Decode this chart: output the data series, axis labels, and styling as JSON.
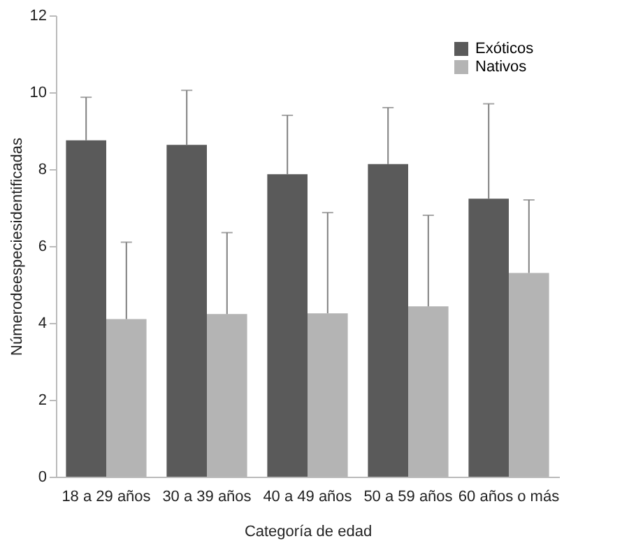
{
  "chart_data": {
    "type": "bar",
    "xlabel": "Categoría de edad",
    "ylabel": "Númerodeespeciesidentificadas",
    "categories": [
      "18 a 29 años",
      "30 a 39 años",
      "40 a 49 años",
      "50 a 59 años",
      "60 años o más"
    ],
    "series": [
      {
        "name": "Exóticos",
        "color": "#5a5a5a",
        "values": [
          8.75,
          8.63,
          7.87,
          8.13,
          7.23
        ],
        "errors": [
          [
            8.75,
            9.87
          ],
          [
            8.63,
            10.05
          ],
          [
            7.87,
            9.4
          ],
          [
            8.13,
            9.6
          ],
          [
            7.23,
            9.7
          ]
        ]
      },
      {
        "name": "Nativos",
        "color": "#b4b4b4",
        "values": [
          4.1,
          4.23,
          4.25,
          4.43,
          5.3
        ],
        "errors": [
          [
            4.1,
            6.1
          ],
          [
            4.23,
            6.35
          ],
          [
            4.25,
            6.87
          ],
          [
            4.43,
            6.8
          ],
          [
            5.3,
            7.2
          ]
        ]
      }
    ],
    "ylim": [
      0,
      12
    ],
    "yticks": [
      0,
      2,
      4,
      6,
      8,
      10,
      12
    ],
    "grid": false,
    "legend": "top right"
  }
}
